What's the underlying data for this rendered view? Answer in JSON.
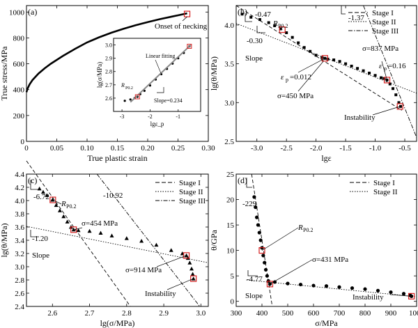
{
  "chart_data": [
    {
      "panel": "(a)",
      "type": "line",
      "xlabel": "True plastic strain",
      "ylabel": "True stress/MPa",
      "xlim": [
        0,
        0.3
      ],
      "ylim": [
        0,
        1050
      ],
      "xticks": [
        "0",
        "0.05",
        "0.10",
        "0.15",
        "0.20",
        "0.25",
        "0.30"
      ],
      "yticks": [
        "0",
        "200",
        "400",
        "600",
        "800",
        "1000"
      ],
      "series": [
        {
          "x": [
            0.0,
            0.002,
            0.005,
            0.01,
            0.02,
            0.03,
            0.04,
            0.05,
            0.06,
            0.08,
            0.1,
            0.12,
            0.14,
            0.16,
            0.18,
            0.2,
            0.22,
            0.24,
            0.26,
            0.265
          ],
          "y": [
            380,
            410,
            440,
            475,
            525,
            565,
            600,
            630,
            660,
            715,
            765,
            805,
            840,
            870,
            898,
            922,
            945,
            965,
            985,
            990
          ]
        }
      ],
      "markers": [
        {
          "x": 0.265,
          "y": 985
        }
      ],
      "annotations": [
        "Onset of necking"
      ],
      "inset": {
        "xlabel": "lgε_p",
        "ylabel": "lg(σ/MPa)",
        "xlim": [
          -3.3,
          -0.2
        ],
        "ylim": [
          2.5,
          3.05
        ],
        "xticks": [
          "-3",
          "-2",
          "-1"
        ],
        "yticks": [
          "2.6",
          "2.7",
          "2.8",
          "2.9",
          "3.0"
        ],
        "x": [
          -2.9,
          -2.7,
          -2.55,
          -2.45,
          -2.35,
          -2.2,
          -2.0,
          -1.8,
          -1.6,
          -1.4,
          -1.2,
          -1.0,
          -0.8,
          -0.6
        ],
        "y": [
          2.58,
          2.59,
          2.6,
          2.61,
          2.63,
          2.655,
          2.695,
          2.74,
          2.78,
          2.82,
          2.86,
          2.9,
          2.94,
          2.99
        ],
        "fit_line": {
          "x": [
            -2.7,
            -0.55
          ],
          "y": [
            2.57,
            3.0
          ]
        },
        "labels": [
          "Linear fitting",
          "R",
          "P0.2",
          "Slope=0.234"
        ]
      }
    },
    {
      "panel": "(b)",
      "type": "scatter",
      "xlabel": "lgε",
      "xlabel_sub": "p",
      "ylabel": "lg(θ/MPa)",
      "xlim": [
        -3.35,
        -0.3
      ],
      "ylim": [
        2.5,
        4.25
      ],
      "xticks": [
        "-3.0",
        "-2.5",
        "-2.0",
        "-1.5",
        "-1.0",
        "-0.5"
      ],
      "yticks": [
        "2.5",
        "3.0",
        "3.5",
        "4.0"
      ],
      "legend": [
        "Stage I",
        "Stage II",
        "Stage III"
      ],
      "legend_position": "top-right",
      "series": [
        {
          "x": [
            -3.25,
            -3.1,
            -2.95,
            -2.8,
            -2.7,
            -2.6,
            -2.5,
            -2.4,
            -2.3,
            -2.2,
            -2.1,
            -2.0,
            -1.9,
            -1.85,
            -1.8,
            -1.7,
            -1.6,
            -1.5,
            -1.4,
            -1.3,
            -1.2,
            -1.1,
            -1.0,
            -0.9,
            -0.85,
            -0.8,
            -0.75,
            -0.7,
            -0.65,
            -0.6,
            -0.57
          ],
          "y": [
            4.14,
            4.1,
            4.07,
            4.03,
            3.99,
            3.95,
            3.9,
            3.84,
            3.77,
            3.71,
            3.66,
            3.61,
            3.58,
            3.57,
            3.56,
            3.55,
            3.53,
            3.5,
            3.47,
            3.44,
            3.41,
            3.38,
            3.35,
            3.32,
            3.31,
            3.29,
            3.24,
            3.18,
            3.1,
            3.0,
            2.95
          ]
        }
      ],
      "markers": [
        {
          "x": -2.57,
          "y": 3.94
        },
        {
          "x": -1.85,
          "y": 3.57
        },
        {
          "x": -0.8,
          "y": 3.29
        },
        {
          "x": -0.58,
          "y": 2.95
        }
      ],
      "annotations": [
        "-0.47",
        "R",
        "P0.2",
        "-1.37",
        "-0.30",
        "Slope",
        "σ=837 MPa",
        "ε",
        "p",
        "=0.16",
        "ε",
        "p",
        "=0.012",
        "σ=450 MPa",
        "Instability"
      ]
    },
    {
      "panel": "(c)",
      "type": "scatter",
      "xlabel": "lg(σ/MPa)",
      "ylabel": "lg(θ/MPa)",
      "xlim": [
        2.53,
        3.02
      ],
      "ylim": [
        2.4,
        4.4
      ],
      "xticks": [
        "2.6",
        "2.7",
        "2.8",
        "2.9",
        "3.0"
      ],
      "yticks": [
        "2.4",
        "2.6",
        "2.8",
        "3.0",
        "3.2",
        "3.4",
        "3.6",
        "3.8",
        "4.0",
        "4.2",
        "4.4"
      ],
      "legend": [
        "Stage I",
        "Stage II",
        "Stage III"
      ],
      "legend_position": "top-right",
      "series": [
        {
          "x": [
            2.565,
            2.575,
            2.585,
            2.6,
            2.61,
            2.62,
            2.63,
            2.64,
            2.65,
            2.657,
            2.67,
            2.7,
            2.73,
            2.76,
            2.8,
            2.84,
            2.88,
            2.92,
            2.95,
            2.961,
            2.965,
            2.97,
            2.975,
            2.978,
            2.98
          ],
          "y": [
            4.18,
            4.13,
            4.08,
            4.01,
            3.93,
            3.85,
            3.76,
            3.68,
            3.6,
            3.56,
            3.55,
            3.54,
            3.51,
            3.47,
            3.43,
            3.39,
            3.33,
            3.25,
            3.2,
            3.17,
            3.13,
            3.06,
            2.97,
            2.89,
            2.82
          ]
        }
      ],
      "markers": [
        {
          "x": 2.601,
          "y": 4.01
        },
        {
          "x": 2.657,
          "y": 3.56
        },
        {
          "x": 2.961,
          "y": 3.17
        },
        {
          "x": 2.98,
          "y": 2.82
        }
      ],
      "annotations": [
        "-6.72",
        "R",
        "P0.2",
        "-10.92",
        "σ=454 MPa",
        "-1.20",
        "Slope",
        "σ=914 MPa",
        "Instability"
      ]
    },
    {
      "panel": "(d)",
      "type": "scatter",
      "xlabel": "σ/MPa",
      "ylabel": "θ/GPa",
      "xlim": [
        300,
        1000
      ],
      "ylim": [
        -1,
        25
      ],
      "xticks": [
        "300",
        "400",
        "500",
        "600",
        "700",
        "800",
        "900",
        "1000"
      ],
      "yticks": [
        "0",
        "5",
        "10",
        "15",
        "20",
        "25"
      ],
      "legend": [
        "Stage I",
        "Stage II"
      ],
      "legend_position": "top-right",
      "series": [
        {
          "x": [
            370,
            375,
            380,
            385,
            390,
            395,
            400,
            405,
            410,
            415,
            420,
            425,
            431,
            450,
            500,
            550,
            600,
            650,
            700,
            750,
            800,
            850,
            900,
            950,
            975,
            980
          ],
          "y": [
            20.5,
            18.5,
            16.5,
            15,
            13.5,
            12,
            10.5,
            9,
            7.6,
            6.2,
            5,
            4,
            3.4,
            3.8,
            3.5,
            3.3,
            3.1,
            3,
            2.8,
            2.6,
            2.4,
            2.1,
            1.8,
            1.5,
            1.2,
            1.0
          ]
        }
      ],
      "markers": [
        {
          "x": 400,
          "y": 10
        },
        {
          "x": 431,
          "y": 3.4
        },
        {
          "x": 980,
          "y": 1.0
        }
      ],
      "annotations": [
        "-229",
        "R",
        "P0.2",
        "σ=431 MPa",
        "-4.77",
        "Slope",
        "Instability"
      ]
    }
  ]
}
